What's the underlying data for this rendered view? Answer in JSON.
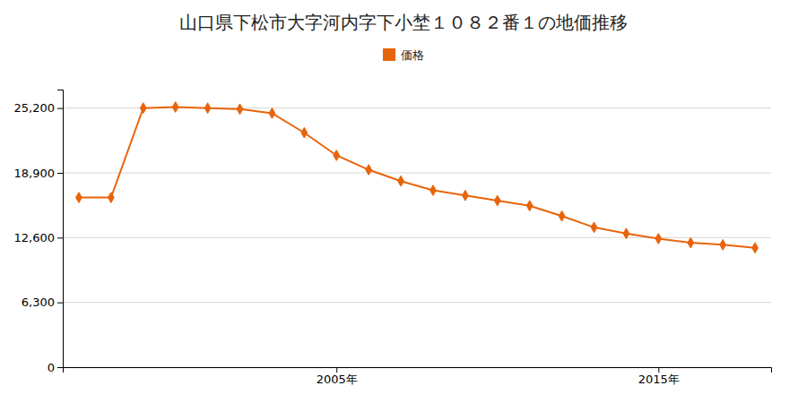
{
  "chart_data": {
    "type": "line",
    "title": "山口県下松市大字河内字下小埜１０８２番１の地価推移",
    "x": [
      1997,
      1998,
      1999,
      2000,
      2001,
      2002,
      2003,
      2004,
      2005,
      2006,
      2007,
      2008,
      2009,
      2010,
      2011,
      2012,
      2013,
      2014,
      2015,
      2016,
      2017,
      2018
    ],
    "series": [
      {
        "name": "価格",
        "color": "#e8640a",
        "marker": "diamond",
        "values": [
          16500,
          16500,
          25200,
          25300,
          25200,
          25100,
          24700,
          22800,
          20600,
          19200,
          18100,
          17200,
          16700,
          16200,
          15700,
          14700,
          13600,
          13000,
          12500,
          12100,
          11900,
          11600
        ]
      }
    ],
    "xlim": [
      1996.5,
      2018.5
    ],
    "xticks": [
      {
        "value": 2005,
        "label": "2005年"
      },
      {
        "value": 2015,
        "label": "2015年"
      }
    ],
    "ylim": [
      0,
      27000
    ],
    "yticks": [
      0,
      {
        "value": 6300,
        "label": "6,300"
      },
      {
        "value": 12600,
        "label": "12,600"
      },
      {
        "value": 18900,
        "label": "18,900"
      },
      {
        "value": 25200,
        "label": "25,200"
      }
    ],
    "grid": true,
    "legend": "top"
  }
}
